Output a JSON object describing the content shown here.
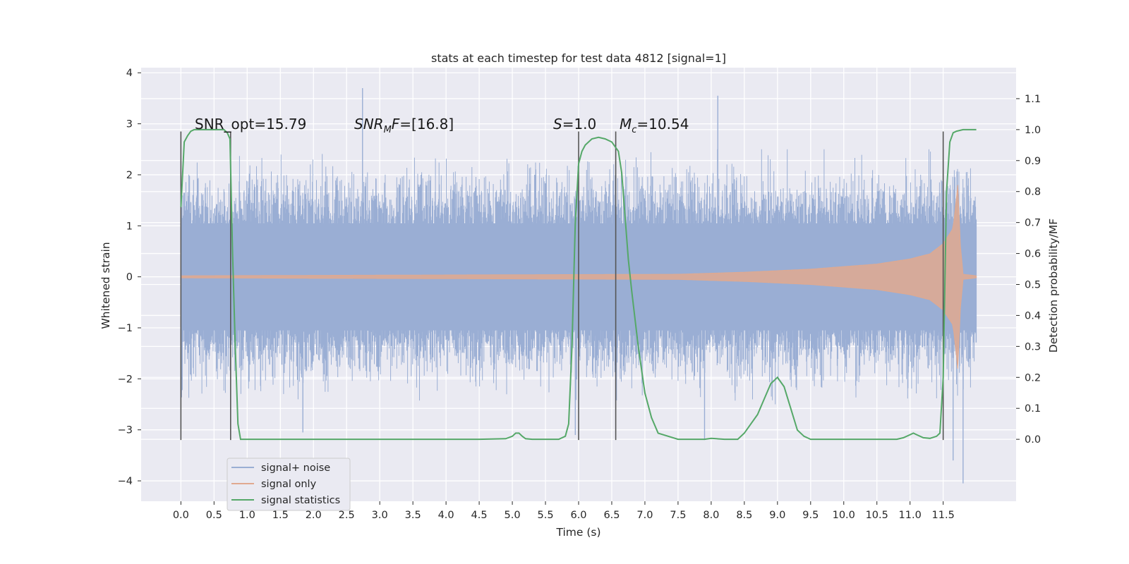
{
  "chart_data": {
    "type": "line",
    "title": "stats at each timestep for test data 4812 [signal=1]",
    "xlabel": "Time (s)",
    "ylabel": "Whitened strain",
    "y2label": "Detection probability/MF",
    "xlim": [
      -0.6,
      12.6
    ],
    "ylim": [
      -4.4,
      4.1
    ],
    "y2lim": [
      -0.2,
      1.2
    ],
    "x_ticks": [
      0.0,
      0.5,
      1.0,
      1.5,
      2.0,
      2.5,
      3.0,
      3.5,
      4.0,
      4.5,
      5.0,
      5.5,
      6.0,
      6.5,
      7.0,
      7.5,
      8.0,
      8.5,
      9.0,
      9.5,
      10.0,
      10.5,
      11.0,
      11.5
    ],
    "x_tick_labels": [
      "0.0",
      "0.5",
      "1.0",
      "1.5",
      "2.0",
      "2.5",
      "3.0",
      "3.5",
      "4.0",
      "4.5",
      "5.0",
      "5.5",
      "6.0",
      "6.5",
      "7.0",
      "7.5",
      "8.0",
      "8.5",
      "9.0",
      "9.5",
      "10.0",
      "10.5",
      "11.0",
      "11.5"
    ],
    "y_ticks": [
      4,
      3,
      2,
      1,
      0,
      -1,
      -2,
      -3,
      -4
    ],
    "y_tick_labels": [
      "4",
      "3",
      "2",
      "1",
      "0",
      "−1",
      "−2",
      "−3",
      "−4"
    ],
    "y2_ticks": [
      1.1,
      1.0,
      0.9,
      0.8,
      0.7,
      0.6,
      0.5,
      0.4,
      0.3,
      0.2,
      0.1,
      0.0
    ],
    "y2_tick_labels": [
      "1.1",
      "1.0",
      "0.9",
      "0.8",
      "0.7",
      "0.6",
      "0.5",
      "0.4",
      "0.3",
      "0.2",
      "0.1",
      "0.0"
    ],
    "grid": true,
    "legend_position": "lower-left",
    "annotations": [
      {
        "text": "SNR_opt=15.79",
        "x": 0.2,
        "y": 3.0
      },
      {
        "text": "SNR_MF=[16.8]",
        "x": 2.6,
        "y": 3.0
      },
      {
        "text": "S=1.0",
        "x": 5.6,
        "y": 3.0
      },
      {
        "text": "M_c=10.54",
        "x": 6.6,
        "y": 3.0
      }
    ],
    "vlines_x": [
      0.0,
      0.75,
      6.0,
      6.56,
      11.5
    ],
    "vline_ylim": [
      -3.2,
      2.85
    ],
    "series": [
      {
        "name": "signal+ noise",
        "color": "#9aaed4",
        "kind": "noise-band",
        "x_range": [
          0.0,
          12.0
        ],
        "envelope_outer": 2.5,
        "spike_points": [
          [
            2.74,
            3.7
          ],
          [
            8.1,
            3.55
          ],
          [
            7.9,
            -3.2
          ],
          [
            11.65,
            -3.6
          ],
          [
            11.8,
            -4.05
          ],
          [
            1.84,
            -3.05
          ],
          [
            5.95,
            -3.1
          ]
        ]
      },
      {
        "name": "signal only",
        "color": "#e0a98f",
        "kind": "chirp",
        "x_range": [
          0.0,
          12.0
        ],
        "envelope": [
          [
            0.0,
            0.02
          ],
          [
            7.5,
            0.05
          ],
          [
            8.5,
            0.09
          ],
          [
            9.5,
            0.15
          ],
          [
            10.5,
            0.25
          ],
          [
            11.0,
            0.35
          ],
          [
            11.3,
            0.45
          ],
          [
            11.5,
            0.65
          ],
          [
            11.65,
            0.95
          ],
          [
            11.72,
            1.8
          ],
          [
            11.76,
            0.6
          ],
          [
            11.8,
            0.05
          ],
          [
            12.0,
            0.02
          ]
        ]
      },
      {
        "name": "signal statistics",
        "color": "#55a868",
        "axis": "right",
        "x": [
          0.0,
          0.05,
          0.1,
          0.15,
          0.2,
          0.3,
          0.4,
          0.5,
          0.6,
          0.65,
          0.7,
          0.74,
          0.78,
          0.82,
          0.86,
          0.9,
          0.95,
          1.0,
          1.5,
          2.0,
          3.0,
          4.0,
          4.5,
          4.9,
          5.0,
          5.05,
          5.1,
          5.15,
          5.2,
          5.3,
          5.5,
          5.7,
          5.8,
          5.85,
          5.9,
          5.95,
          6.0,
          6.05,
          6.1,
          6.2,
          6.3,
          6.4,
          6.5,
          6.6,
          6.65,
          6.7,
          6.75,
          6.8,
          6.9,
          7.0,
          7.1,
          7.2,
          7.5,
          7.8,
          7.9,
          8.0,
          8.2,
          8.4,
          8.5,
          8.6,
          8.7,
          8.8,
          8.9,
          9.0,
          9.1,
          9.2,
          9.3,
          9.4,
          9.5,
          10.0,
          10.5,
          10.8,
          10.9,
          11.0,
          11.05,
          11.1,
          11.2,
          11.3,
          11.4,
          11.45,
          11.5,
          11.55,
          11.6,
          11.65,
          11.7,
          11.8,
          12.0
        ],
        "values": [
          0.75,
          0.96,
          0.98,
          0.995,
          1.0,
          1.0,
          1.0,
          1.0,
          1.0,
          1.0,
          0.99,
          0.97,
          0.6,
          0.3,
          0.05,
          0.0,
          0.0,
          0.0,
          0.0,
          0.0,
          0.0,
          0.0,
          0.0,
          0.002,
          0.01,
          0.02,
          0.02,
          0.01,
          0.002,
          0.0,
          0.0,
          0.0,
          0.01,
          0.05,
          0.3,
          0.7,
          0.89,
          0.93,
          0.95,
          0.97,
          0.975,
          0.97,
          0.96,
          0.93,
          0.86,
          0.72,
          0.58,
          0.48,
          0.3,
          0.15,
          0.07,
          0.02,
          0.0,
          0.0,
          0.0,
          0.003,
          0.0,
          0.0,
          0.02,
          0.05,
          0.08,
          0.13,
          0.18,
          0.2,
          0.17,
          0.1,
          0.03,
          0.01,
          0.0,
          0.0,
          0.0,
          0.0,
          0.005,
          0.015,
          0.02,
          0.015,
          0.005,
          0.003,
          0.01,
          0.02,
          0.2,
          0.8,
          0.96,
          0.99,
          0.995,
          1.0,
          1.0
        ]
      }
    ]
  }
}
